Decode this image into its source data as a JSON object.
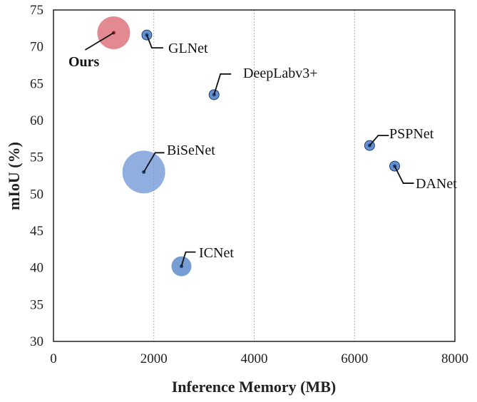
{
  "chart_data": {
    "type": "scatter",
    "xlabel": "Inference Memory (MB)",
    "ylabel": "mIoU (%)",
    "xlim": [
      0,
      8000
    ],
    "ylim": [
      30,
      75
    ],
    "x_ticks": [
      "0",
      "2000",
      "4000",
      "6000",
      "8000"
    ],
    "y_ticks": [
      "30",
      "35",
      "40",
      "45",
      "50",
      "55",
      "60",
      "65",
      "70",
      "75"
    ],
    "grid": true,
    "points": [
      {
        "label": "Ours",
        "x": 1200,
        "y": 71.9,
        "size": "large",
        "color": "#d9626e",
        "highlight": true
      },
      {
        "label": "GLNet",
        "x": 1860,
        "y": 71.6,
        "size": "small",
        "color": "#4a7dc4"
      },
      {
        "label": "DeepLabv3+",
        "x": 3200,
        "y": 63.5,
        "size": "small",
        "color": "#4a7dc4"
      },
      {
        "label": "BiSeNet",
        "x": 1800,
        "y": 53.0,
        "size": "large",
        "color": "#6b93d4"
      },
      {
        "label": "PSPNet",
        "x": 6300,
        "y": 56.6,
        "size": "small",
        "color": "#4a7dc4"
      },
      {
        "label": "DANet",
        "x": 6800,
        "y": 53.8,
        "size": "small",
        "color": "#4a7dc4"
      },
      {
        "label": "ICNet",
        "x": 2550,
        "y": 40.2,
        "size": "medium",
        "color": "#4a7dc4"
      }
    ]
  }
}
